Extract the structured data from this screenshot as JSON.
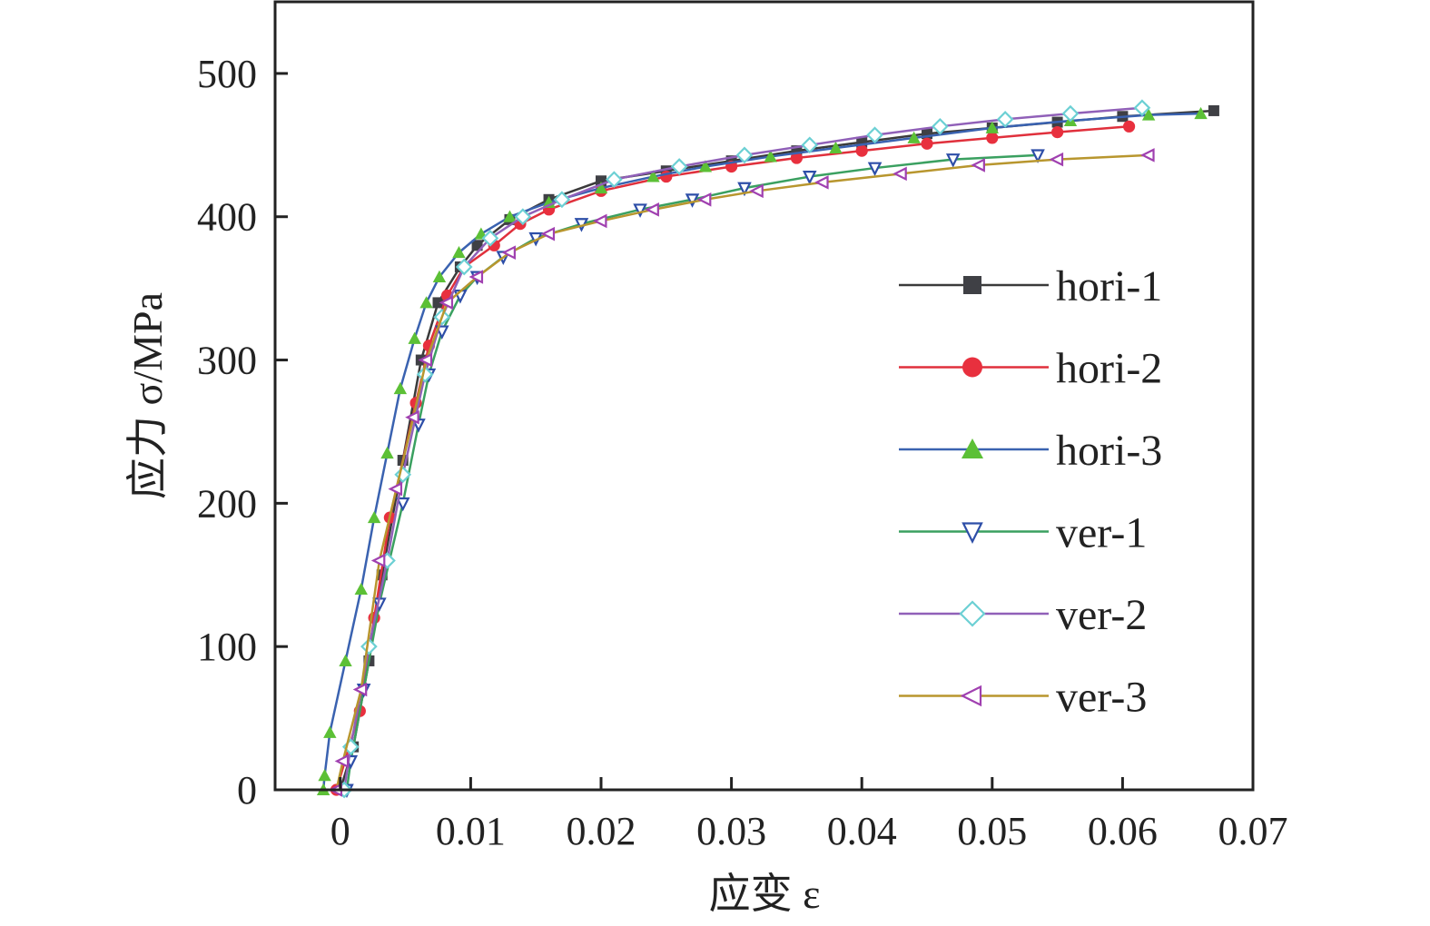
{
  "chart_data": {
    "type": "line",
    "title": "",
    "xlabel": "应变 ε",
    "ylabel": "应力 σ/MPa",
    "xlim": [
      -0.005,
      0.07
    ],
    "ylim": [
      0,
      550
    ],
    "xticks": [
      0,
      0.01,
      0.02,
      0.03,
      0.04,
      0.05,
      0.06,
      0.07
    ],
    "xtick_labels": [
      "0",
      "0.01",
      "0.02",
      "0.03",
      "0.04",
      "0.05",
      "0.06",
      "0.07"
    ],
    "yticks": [
      0,
      100,
      200,
      300,
      400,
      500
    ],
    "ytick_labels": [
      "0",
      "100",
      "200",
      "300",
      "400",
      "500"
    ],
    "grid": false,
    "legend_position": "right",
    "series": [
      {
        "name": "hori-1",
        "line_color": "#3a3a3a",
        "marker": "square",
        "marker_color": "#3f4045",
        "x": [
          0,
          0.001,
          0.0022,
          0.0032,
          0.0048,
          0.0062,
          0.0075,
          0.0092,
          0.0105,
          0.013,
          0.016,
          0.02,
          0.025,
          0.03,
          0.035,
          0.04,
          0.045,
          0.05,
          0.055,
          0.06,
          0.067
        ],
        "y": [
          0,
          30,
          90,
          150,
          230,
          300,
          340,
          365,
          380,
          398,
          412,
          425,
          432,
          439,
          446,
          452,
          458,
          462,
          466,
          470,
          474
        ]
      },
      {
        "name": "hori-2",
        "line_color": "#e0303c",
        "marker": "circle",
        "marker_color": "#e8303e",
        "x": [
          -0.0003,
          0.0015,
          0.0026,
          0.0038,
          0.0058,
          0.0068,
          0.0082,
          0.0095,
          0.0118,
          0.0138,
          0.016,
          0.02,
          0.025,
          0.03,
          0.035,
          0.04,
          0.045,
          0.05,
          0.055,
          0.0605
        ],
        "y": [
          0,
          55,
          120,
          190,
          270,
          310,
          345,
          365,
          380,
          395,
          405,
          418,
          428,
          435,
          441,
          446,
          451,
          455,
          459,
          463
        ]
      },
      {
        "name": "hori-3",
        "line_color": "#3a62b0",
        "marker": "triangle-up",
        "marker_color": "#5cc036",
        "x": [
          -0.0013,
          -0.0012,
          -0.0008,
          0.0004,
          0.0016,
          0.0026,
          0.0036,
          0.0046,
          0.0057,
          0.0066,
          0.0076,
          0.0091,
          0.0108,
          0.013,
          0.016,
          0.02,
          0.024,
          0.028,
          0.033,
          0.038,
          0.044,
          0.05,
          0.056,
          0.062,
          0.066
        ],
        "y": [
          0,
          10,
          40,
          90,
          140,
          190,
          235,
          280,
          315,
          340,
          358,
          375,
          388,
          400,
          410,
          420,
          428,
          435,
          442,
          448,
          455,
          462,
          467,
          471,
          472
        ]
      },
      {
        "name": "ver-1",
        "line_color": "#3aa060",
        "marker": "triangle-down",
        "marker_color": "#2d4ea8",
        "x": [
          0.0005,
          0.0008,
          0.0018,
          0.003,
          0.0048,
          0.006,
          0.0068,
          0.0078,
          0.0092,
          0.0105,
          0.0125,
          0.015,
          0.0185,
          0.023,
          0.027,
          0.031,
          0.036,
          0.041,
          0.047,
          0.0535
        ],
        "y": [
          0,
          20,
          70,
          130,
          200,
          255,
          290,
          320,
          345,
          358,
          372,
          385,
          395,
          405,
          412,
          420,
          428,
          434,
          440,
          443
        ]
      },
      {
        "name": "ver-2",
        "line_color": "#9060b8",
        "marker": "diamond",
        "marker_color": "#6cd0d4",
        "x": [
          0.0003,
          0.0008,
          0.0022,
          0.0036,
          0.0048,
          0.0065,
          0.0078,
          0.0095,
          0.0115,
          0.014,
          0.017,
          0.021,
          0.026,
          0.031,
          0.036,
          0.041,
          0.046,
          0.051,
          0.056,
          0.0615
        ],
        "y": [
          0,
          30,
          100,
          160,
          220,
          290,
          330,
          365,
          385,
          400,
          412,
          426,
          435,
          443,
          450,
          457,
          463,
          468,
          472,
          476
        ]
      },
      {
        "name": "ver-3",
        "line_color": "#b8962e",
        "marker": "triangle-left",
        "marker_color": "#a040b0",
        "x": [
          -0.0003,
          0.0002,
          0.0016,
          0.003,
          0.0043,
          0.0056,
          0.0066,
          0.0082,
          0.0105,
          0.013,
          0.016,
          0.02,
          0.024,
          0.028,
          0.032,
          0.037,
          0.043,
          0.049,
          0.055,
          0.062
        ],
        "y": [
          0,
          20,
          70,
          160,
          210,
          260,
          300,
          340,
          358,
          375,
          388,
          397,
          405,
          412,
          418,
          424,
          430,
          436,
          440,
          443
        ]
      }
    ]
  }
}
